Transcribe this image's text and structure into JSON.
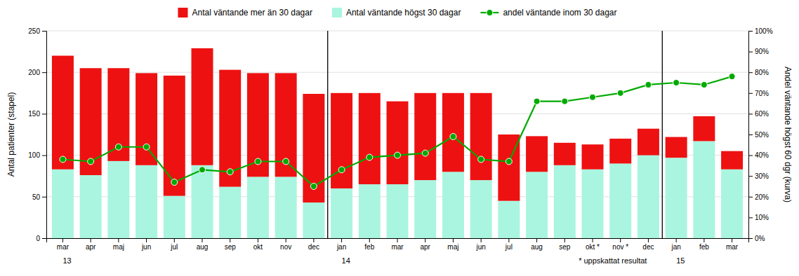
{
  "chart_data": {
    "type": "bar",
    "stacked": true,
    "grid": true,
    "categories": [
      "mar",
      "apr",
      "maj",
      "jun",
      "jul",
      "aug",
      "sep",
      "okt",
      "nov",
      "dec",
      "jan",
      "feb",
      "mar",
      "apr",
      "maj",
      "jun",
      "jul",
      "aug",
      "sep",
      "okt *",
      "nov *",
      "dec",
      "jan",
      "feb",
      "mar"
    ],
    "ylabel": "Antal patienter (stapel)",
    "y2label": "Andel väntande högst 60 dgr (kurva)",
    "ylim": [
      0,
      250
    ],
    "yticks": [
      0,
      50,
      100,
      150,
      200,
      250
    ],
    "y2lim": [
      0,
      100
    ],
    "y2ticks": [
      {
        "value": 0,
        "label": "0%"
      },
      {
        "value": 10,
        "label": "10%"
      },
      {
        "value": 20,
        "label": "20%"
      },
      {
        "value": 30,
        "label": "30%"
      },
      {
        "value": 40,
        "label": "40%"
      },
      {
        "value": 50,
        "label": "50%"
      },
      {
        "value": 60,
        "label": "60%"
      },
      {
        "value": 70,
        "label": "70%"
      },
      {
        "value": 80,
        "label": "80%"
      },
      {
        "value": 90,
        "label": "90%"
      },
      {
        "value": 100,
        "label": "100%"
      }
    ],
    "series": [
      {
        "name": "Antal väntande högst 30 dagar",
        "type": "bar",
        "color": "#aaf5df",
        "values": [
          83,
          76,
          93,
          88,
          51,
          88,
          62,
          74,
          74,
          43,
          60,
          65,
          65,
          70,
          80,
          70,
          45,
          80,
          88,
          83,
          90,
          100,
          97,
          117,
          83
        ]
      },
      {
        "name": "Antal väntande mer än 30 dagar",
        "type": "bar",
        "color": "#ee1111",
        "values": [
          137,
          129,
          112,
          111,
          145,
          141,
          141,
          125,
          125,
          131,
          115,
          110,
          100,
          105,
          95,
          105,
          80,
          43,
          27,
          30,
          30,
          32,
          25,
          30,
          22
        ]
      },
      {
        "name": "andel väntande  inom 30 dagar",
        "type": "line",
        "axis": "y2",
        "color": "#00aa00",
        "marker": "circle",
        "values": [
          38,
          37,
          44,
          44,
          27,
          33,
          32,
          37,
          37,
          25,
          33,
          39,
          40,
          41,
          49,
          38,
          37,
          66,
          66,
          68,
          70,
          74,
          75,
          74,
          78
        ]
      }
    ],
    "separators": [
      9.5,
      21.5
    ],
    "annotations": [
      {
        "text": "13",
        "x": 0
      },
      {
        "text": "14",
        "x": 10
      },
      {
        "text": "15",
        "x": 22
      },
      {
        "text": "* uppskattat resultat",
        "x": 18.5
      }
    ]
  }
}
